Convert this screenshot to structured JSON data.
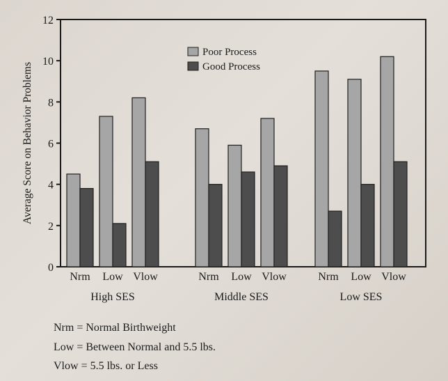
{
  "chart_data": {
    "type": "bar",
    "ylabel": "Average Score on Behavior Problems",
    "ylim": [
      0,
      12
    ],
    "yticks": [
      0,
      2,
      4,
      6,
      8,
      10,
      12
    ],
    "groups": [
      "High SES",
      "Middle SES",
      "Low SES"
    ],
    "categories": [
      "Nrm",
      "Low",
      "Vlow"
    ],
    "series": [
      {
        "name": "Poor Process",
        "color": "#a6a6a6",
        "values": [
          [
            4.5,
            7.3,
            8.2
          ],
          [
            6.7,
            5.9,
            7.2
          ],
          [
            9.5,
            9.1,
            10.2
          ]
        ]
      },
      {
        "name": "Good Process",
        "color": "#4d4d4d",
        "values": [
          [
            3.8,
            2.1,
            5.1
          ],
          [
            4.0,
            4.6,
            4.9
          ],
          [
            2.7,
            4.0,
            5.1
          ]
        ]
      }
    ],
    "legend_position": "top-center",
    "grid": false
  },
  "notes": [
    {
      "key": "Nrm",
      "eq": "=",
      "text": "Normal Birthweight"
    },
    {
      "key": "Low",
      "eq": "=",
      "text": "Between Normal and 5.5 lbs."
    },
    {
      "key": "Vlow",
      "eq": "=",
      "text": "5.5 lbs. or Less"
    }
  ]
}
